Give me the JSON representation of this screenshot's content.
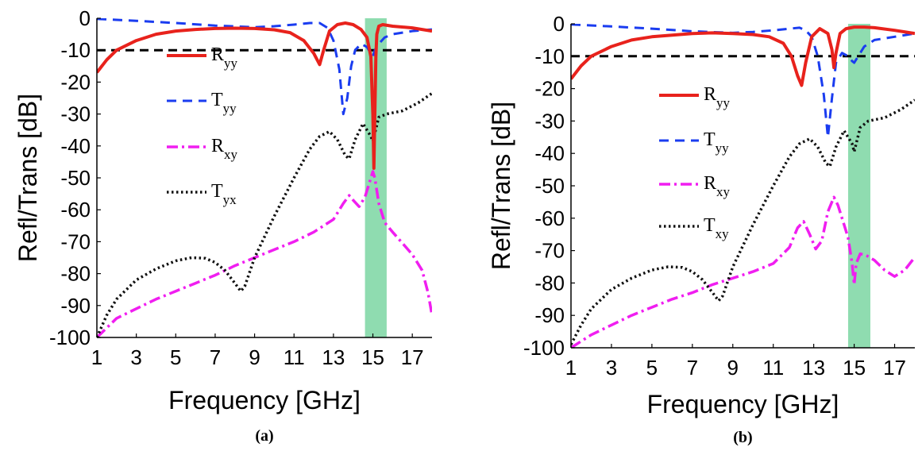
{
  "chart_data": [
    {
      "type": "line",
      "panel_label": "(a)",
      "xlabel": "Frequency [GHz]",
      "ylabel": "Refl/Trans [dB]",
      "xlim": [
        1,
        18
      ],
      "ylim": [
        -100,
        0
      ],
      "xticks": [
        "1",
        "3",
        "5",
        "7",
        "9",
        "11",
        "13",
        "15",
        "17"
      ],
      "yticks": [
        "0",
        "-10",
        "-20",
        "-30",
        "-40",
        "-50",
        "-60",
        "-70",
        "-80",
        "-90",
        "-100"
      ],
      "threshold": -10,
      "band": [
        14.6,
        15.7
      ],
      "legend": [
        {
          "main": "R",
          "sub": "yy"
        },
        {
          "main": "T",
          "sub": "yy"
        },
        {
          "main": "R",
          "sub": "xy"
        },
        {
          "main": "T",
          "sub": "yx"
        }
      ],
      "series": [
        {
          "key": "Ryy",
          "x": [
            1,
            1.5,
            2,
            3,
            4,
            5,
            6,
            7,
            8,
            9,
            10,
            10.8,
            11.5,
            12,
            12.3,
            12.5,
            12.8,
            13.2,
            13.6,
            14,
            14.4,
            14.7,
            14.9,
            15.0,
            15.05,
            15.1,
            15.15,
            15.2,
            15.3,
            15.5,
            16,
            17,
            18
          ],
          "y": [
            -17,
            -13,
            -10,
            -7,
            -5,
            -4,
            -3.5,
            -3.2,
            -3.1,
            -3.2,
            -3.6,
            -4.5,
            -7,
            -11,
            -14.5,
            -10,
            -4,
            -2,
            -1.5,
            -2,
            -3.5,
            -6,
            -12,
            -30,
            -47,
            -30,
            -12,
            -5,
            -2.5,
            -2,
            -2.5,
            -3,
            -4
          ]
        },
        {
          "key": "Tyy",
          "x": [
            1,
            3,
            5,
            7,
            9,
            10,
            11,
            11.8,
            12.3,
            12.7,
            13,
            13.3,
            13.5,
            13.7,
            13.9,
            14.1,
            14.4,
            14.7,
            14.9,
            15.0,
            15.1,
            15.3,
            15.6,
            16,
            17,
            18
          ],
          "y": [
            -0.2,
            -0.8,
            -1.5,
            -2.3,
            -2.8,
            -2.5,
            -2,
            -1.5,
            -1.5,
            -3,
            -7,
            -16,
            -30,
            -25,
            -15,
            -10,
            -8,
            -9,
            -11,
            -12,
            -10,
            -8,
            -6,
            -5,
            -4,
            -3.5
          ]
        },
        {
          "key": "Rxy",
          "x": [
            1,
            2,
            3,
            4,
            5,
            6,
            7,
            8,
            9,
            10,
            11,
            12,
            12.5,
            13,
            13.5,
            13.8,
            14,
            14.3,
            14.6,
            14.8,
            15,
            15.1,
            15.3,
            15.6,
            16,
            17,
            17.5,
            17.8,
            18
          ],
          "y": [
            -100,
            -94,
            -91,
            -88,
            -85.5,
            -83,
            -80.5,
            -77.5,
            -75,
            -72.5,
            -70,
            -67,
            -65,
            -63,
            -58,
            -55.5,
            -57,
            -59,
            -56,
            -52,
            -48,
            -50,
            -58,
            -64,
            -67,
            -74,
            -79,
            -86,
            -93
          ]
        },
        {
          "key": "Tyx",
          "x": [
            1,
            1.5,
            2,
            3,
            4,
            5,
            5.8,
            6.5,
            7,
            7.5,
            8,
            8.3,
            8.5,
            9,
            10,
            11,
            11.8,
            12.3,
            12.8,
            13.2,
            13.6,
            13.8,
            14.1,
            14.5,
            14.9,
            15.0,
            15.1,
            15.3,
            15.7,
            16.5,
            17.3,
            18
          ],
          "y": [
            -100,
            -93,
            -88,
            -82,
            -78.5,
            -76,
            -75,
            -75.2,
            -76.5,
            -79,
            -83,
            -85.5,
            -84,
            -75,
            -62,
            -50,
            -41,
            -37,
            -35.5,
            -38,
            -43,
            -44,
            -38,
            -33,
            -37,
            -38.5,
            -36,
            -31,
            -30,
            -29,
            -26.5,
            -23.5
          ]
        }
      ]
    },
    {
      "type": "line",
      "panel_label": "(b)",
      "xlabel": "Frequency [GHz]",
      "ylabel": "Refl/Trans [dB]",
      "xlim": [
        1,
        18
      ],
      "ylim": [
        -100,
        0
      ],
      "xticks": [
        "1",
        "3",
        "5",
        "7",
        "9",
        "11",
        "13",
        "15",
        "17"
      ],
      "yticks": [
        "0",
        "-10",
        "-20",
        "-30",
        "-40",
        "-50",
        "-60",
        "-70",
        "-80",
        "-90",
        "-100"
      ],
      "threshold": -10,
      "band": [
        14.7,
        15.8
      ],
      "legend": [
        {
          "main": "R",
          "sub": "yy"
        },
        {
          "main": "T",
          "sub": "yy"
        },
        {
          "main": "R",
          "sub": "xy"
        },
        {
          "main": "T",
          "sub": "xy"
        }
      ],
      "series": [
        {
          "key": "Ryy",
          "x": [
            1,
            1.5,
            2,
            3,
            4,
            5,
            6,
            7,
            8,
            9,
            10,
            10.8,
            11.5,
            11.9,
            12.2,
            12.4,
            12.6,
            12.9,
            13.3,
            13.7,
            13.9,
            14.0,
            14.1,
            14.3,
            14.6,
            15,
            15.5,
            16,
            17,
            18
          ],
          "y": [
            -17,
            -13,
            -10,
            -7,
            -5,
            -4,
            -3.5,
            -3,
            -2.8,
            -3,
            -3.3,
            -4,
            -6,
            -10,
            -16,
            -19,
            -12,
            -4,
            -1.5,
            -3,
            -8,
            -13.5,
            -9,
            -3,
            -1.5,
            -1,
            -1,
            -1.2,
            -2,
            -3
          ]
        },
        {
          "key": "Tyy",
          "x": [
            1,
            3,
            5,
            7,
            9,
            10,
            11,
            11.8,
            12.3,
            12.6,
            12.9,
            13.2,
            13.5,
            13.7,
            13.9,
            14.1,
            14.4,
            14.7,
            14.9,
            15.0,
            15.2,
            15.5,
            16,
            17,
            18
          ],
          "y": [
            -0.2,
            -0.8,
            -1.5,
            -2.3,
            -2.8,
            -2.5,
            -2,
            -1.5,
            -1.2,
            -2,
            -4,
            -10,
            -22,
            -35,
            -23,
            -12,
            -9,
            -10,
            -11.5,
            -12,
            -10,
            -7,
            -5,
            -4,
            -3
          ]
        },
        {
          "key": "Rxy",
          "x": [
            1,
            2,
            3,
            4,
            5,
            6,
            7,
            8,
            9,
            10,
            11,
            11.8,
            12.2,
            12.5,
            12.8,
            13.1,
            13.4,
            13.7,
            14,
            14.2,
            14.5,
            14.7,
            14.9,
            15.0,
            15.1,
            15.3,
            15.6,
            16,
            16.5,
            17,
            17.5,
            18
          ],
          "y": [
            -100,
            -96,
            -93,
            -90,
            -87.5,
            -85,
            -83,
            -80.5,
            -78.5,
            -76.5,
            -74,
            -69,
            -63,
            -61,
            -65,
            -69.5,
            -67,
            -58,
            -53.5,
            -56,
            -62,
            -66,
            -74,
            -80.5,
            -74,
            -71,
            -71.5,
            -73,
            -76,
            -78,
            -76,
            -72
          ]
        },
        {
          "key": "Txy",
          "x": [
            1,
            1.5,
            2,
            3,
            4,
            5,
            5.8,
            6.5,
            7,
            7.5,
            8,
            8.3,
            8.5,
            9,
            10,
            11,
            11.8,
            12.3,
            12.8,
            13.2,
            13.6,
            13.8,
            14.1,
            14.5,
            14.9,
            15.0,
            15.1,
            15.3,
            15.7,
            16.5,
            17.3,
            18
          ],
          "y": [
            -99,
            -93,
            -88,
            -82,
            -78.5,
            -76,
            -75,
            -75.2,
            -76.5,
            -79,
            -83,
            -85.5,
            -84,
            -75,
            -62,
            -50,
            -41,
            -37,
            -35.5,
            -38,
            -43,
            -44,
            -38,
            -33,
            -37,
            -39.5,
            -37,
            -32,
            -30,
            -29,
            -26.5,
            -23.5
          ]
        }
      ]
    }
  ],
  "styles": {
    "Ryy": {
      "color": "#e8221c",
      "dash": "",
      "width": 4
    },
    "Tyy": {
      "color": "#1a3cf0",
      "dash": "12 8",
      "width": 3
    },
    "Rxy": {
      "color": "#f01ef0",
      "dash": "14 5 3 5",
      "width": 3.5
    },
    "Tyx": {
      "color": "#111111",
      "dash": "2.5 3.5",
      "width": 3.5
    },
    "Txy": {
      "color": "#111111",
      "dash": "2.5 3.5",
      "width": 3.5
    },
    "threshold_color": "#000000",
    "band_color": "#8fdcb0"
  }
}
